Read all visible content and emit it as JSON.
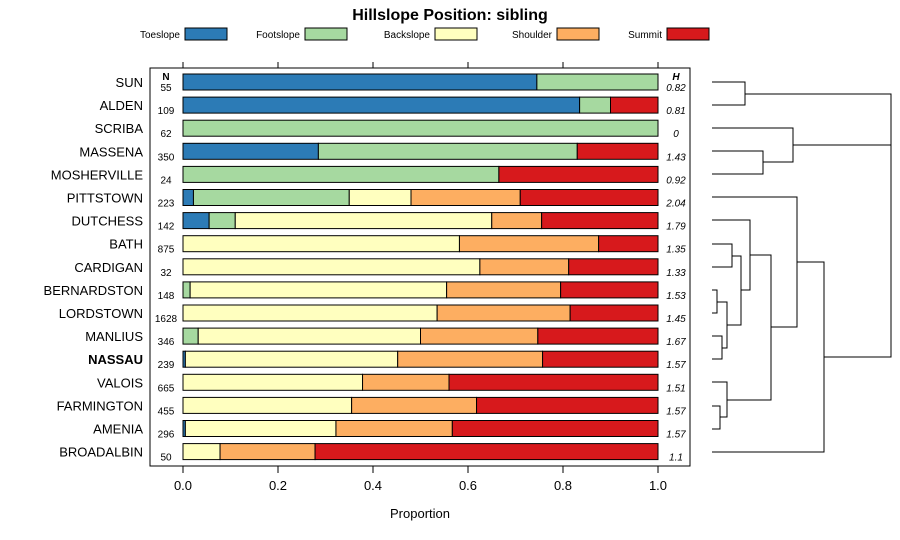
{
  "chart_data": {
    "type": "bar",
    "orientation": "horizontal",
    "stacked": true,
    "title": "Hillslope Position: sibling",
    "xlabel": "Proportion",
    "ylabel": "",
    "xlim": [
      0,
      1
    ],
    "x_ticks": [
      "0.0",
      "0.2",
      "0.4",
      "0.6",
      "0.8",
      "1.0"
    ],
    "n_header": "N",
    "h_header": "H",
    "highlight": "NASSAU",
    "categories": [
      "SUN",
      "ALDEN",
      "SCRIBA",
      "MASSENA",
      "MOSHERVILLE",
      "PITTSTOWN",
      "DUTCHESS",
      "BATH",
      "CARDIGAN",
      "BERNARDSTON",
      "LORDSTOWN",
      "MANLIUS",
      "NASSAU",
      "VALOIS",
      "FARMINGTON",
      "AMENIA",
      "BROADALBIN"
    ],
    "n": [
      "55",
      "109",
      "62",
      "350",
      "24",
      "223",
      "142",
      "875",
      "32",
      "148",
      "1628",
      "346",
      "239",
      "665",
      "455",
      "296",
      "50"
    ],
    "h": [
      "0.82",
      "0.81",
      "0",
      "1.43",
      "0.92",
      "2.04",
      "1.79",
      "1.35",
      "1.33",
      "1.53",
      "1.45",
      "1.67",
      "1.57",
      "1.51",
      "1.57",
      "1.57",
      "1.1"
    ],
    "series": [
      {
        "name": "Toeslope",
        "color": "#2c7bb6",
        "values": [
          0.745,
          0.835,
          0,
          0.285,
          0,
          0.022,
          0.055,
          0,
          0,
          0,
          0,
          0,
          0.005,
          0,
          0,
          0.005,
          0
        ]
      },
      {
        "name": "Footslope",
        "color": "#a6d9a0",
        "values": [
          0.255,
          0.065,
          1.0,
          0.545,
          0.665,
          0.328,
          0.055,
          0,
          0,
          0.015,
          0,
          0.032,
          0,
          0,
          0,
          0,
          0
        ]
      },
      {
        "name": "Backslope",
        "color": "#ffffbf",
        "values": [
          0,
          0,
          0,
          0,
          0,
          0.13,
          0.54,
          0.582,
          0.625,
          0.54,
          0.535,
          0.468,
          0.447,
          0.378,
          0.355,
          0.317,
          0.078
        ]
      },
      {
        "name": "Shoulder",
        "color": "#fdae61",
        "values": [
          0,
          0,
          0,
          0,
          0,
          0.23,
          0.105,
          0.293,
          0.187,
          0.24,
          0.28,
          0.247,
          0.305,
          0.182,
          0.263,
          0.245,
          0.2
        ]
      },
      {
        "name": "Summit",
        "color": "#d7191c",
        "values": [
          0,
          0.1,
          0,
          0.17,
          0.335,
          0.29,
          0.245,
          0.125,
          0.188,
          0.205,
          0.185,
          0.253,
          0.243,
          0.44,
          0.382,
          0.433,
          0.722
        ]
      }
    ]
  }
}
